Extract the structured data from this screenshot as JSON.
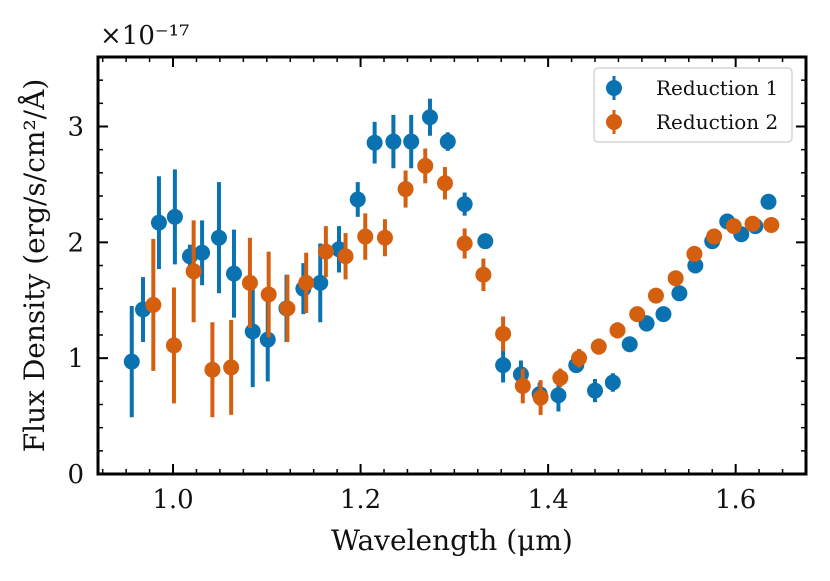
{
  "chart_data": {
    "type": "scatter",
    "xlabel": "Wavelength (μm)",
    "ylabel": "Flux Density (erg/s/cm²/Å)",
    "y_scale_label": "×10⁻¹⁷",
    "xlim": [
      0.92,
      1.675
    ],
    "ylim": [
      0,
      3.6
    ],
    "x_ticks": [
      1.0,
      1.2,
      1.4,
      1.6
    ],
    "x_tick_labels": [
      "1.0",
      "1.2",
      "1.4",
      "1.6"
    ],
    "y_ticks": [
      0,
      1,
      2,
      3
    ],
    "y_tick_labels": [
      "0",
      "1",
      "2",
      "3"
    ],
    "legend_position": "top-right",
    "series": [
      {
        "name": "Reduction 1",
        "color": "#0a72b0",
        "points": [
          {
            "x": 0.956,
            "y": 0.97,
            "err": 0.48
          },
          {
            "x": 0.968,
            "y": 1.42,
            "err": 0.28
          },
          {
            "x": 0.985,
            "y": 2.17,
            "err": 0.4
          },
          {
            "x": 1.002,
            "y": 2.22,
            "err": 0.41
          },
          {
            "x": 1.018,
            "y": 1.88,
            "err": 0.1
          },
          {
            "x": 1.031,
            "y": 1.91,
            "err": 0.28
          },
          {
            "x": 1.049,
            "y": 2.04,
            "err": 0.48
          },
          {
            "x": 1.065,
            "y": 1.73,
            "err": 0.38
          },
          {
            "x": 1.085,
            "y": 1.23,
            "err": 0.48
          },
          {
            "x": 1.101,
            "y": 1.16,
            "err": 0.36
          },
          {
            "x": 1.121,
            "y": 1.43,
            "err": 0.29
          },
          {
            "x": 1.139,
            "y": 1.6,
            "err": 0.22
          },
          {
            "x": 1.157,
            "y": 1.65,
            "err": 0.34
          },
          {
            "x": 1.177,
            "y": 1.94,
            "err": 0.2
          },
          {
            "x": 1.197,
            "y": 2.37,
            "err": 0.15
          },
          {
            "x": 1.215,
            "y": 2.86,
            "err": 0.18
          },
          {
            "x": 1.235,
            "y": 2.87,
            "err": 0.23
          },
          {
            "x": 1.254,
            "y": 2.87,
            "err": 0.23
          },
          {
            "x": 1.274,
            "y": 3.08,
            "err": 0.16
          },
          {
            "x": 1.293,
            "y": 2.87,
            "err": 0.08
          },
          {
            "x": 1.311,
            "y": 2.33,
            "err": 0.1
          },
          {
            "x": 1.333,
            "y": 2.01,
            "err": 0.04
          },
          {
            "x": 1.352,
            "y": 0.94,
            "err": 0.15
          },
          {
            "x": 1.371,
            "y": 0.86,
            "err": 0.12
          },
          {
            "x": 1.391,
            "y": 0.69,
            "err": 0.1
          },
          {
            "x": 1.411,
            "y": 0.68,
            "err": 0.14
          },
          {
            "x": 1.43,
            "y": 0.94,
            "err": 0.05
          },
          {
            "x": 1.45,
            "y": 0.72,
            "err": 0.1
          },
          {
            "x": 1.469,
            "y": 0.79,
            "err": 0.08
          },
          {
            "x": 1.487,
            "y": 1.12,
            "err": 0.04
          },
          {
            "x": 1.505,
            "y": 1.3,
            "err": 0.07
          },
          {
            "x": 1.523,
            "y": 1.38,
            "err": 0.04
          },
          {
            "x": 1.54,
            "y": 1.56,
            "err": 0.04
          },
          {
            "x": 1.557,
            "y": 1.8,
            "err": 0.05
          },
          {
            "x": 1.575,
            "y": 2.01,
            "err": 0.04
          },
          {
            "x": 1.591,
            "y": 2.18,
            "err": 0.05
          },
          {
            "x": 1.606,
            "y": 2.07,
            "err": 0.05
          },
          {
            "x": 1.621,
            "y": 2.14,
            "err": 0.05
          },
          {
            "x": 1.635,
            "y": 2.35,
            "err": 0.04
          }
        ]
      },
      {
        "name": "Reduction 2",
        "color": "#d35f0f",
        "points": [
          {
            "x": 0.979,
            "y": 1.46,
            "err": 0.57
          },
          {
            "x": 1.001,
            "y": 1.11,
            "err": 0.5
          },
          {
            "x": 1.022,
            "y": 1.75,
            "err": 0.44
          },
          {
            "x": 1.042,
            "y": 0.9,
            "err": 0.41
          },
          {
            "x": 1.062,
            "y": 0.92,
            "err": 0.41
          },
          {
            "x": 1.082,
            "y": 1.65,
            "err": 0.39
          },
          {
            "x": 1.102,
            "y": 1.55,
            "err": 0.37
          },
          {
            "x": 1.122,
            "y": 1.43,
            "err": 0.29
          },
          {
            "x": 1.142,
            "y": 1.65,
            "err": 0.26
          },
          {
            "x": 1.163,
            "y": 1.92,
            "err": 0.22
          },
          {
            "x": 1.184,
            "y": 1.88,
            "err": 0.2
          },
          {
            "x": 1.205,
            "y": 2.05,
            "err": 0.2
          },
          {
            "x": 1.226,
            "y": 2.04,
            "err": 0.16
          },
          {
            "x": 1.248,
            "y": 2.46,
            "err": 0.16
          },
          {
            "x": 1.269,
            "y": 2.66,
            "err": 0.15
          },
          {
            "x": 1.29,
            "y": 2.51,
            "err": 0.14
          },
          {
            "x": 1.311,
            "y": 1.99,
            "err": 0.13
          },
          {
            "x": 1.331,
            "y": 1.72,
            "err": 0.14
          },
          {
            "x": 1.352,
            "y": 1.21,
            "err": 0.15
          },
          {
            "x": 1.373,
            "y": 0.76,
            "err": 0.15
          },
          {
            "x": 1.392,
            "y": 0.66,
            "err": 0.15
          },
          {
            "x": 1.413,
            "y": 0.83,
            "err": 0.08
          },
          {
            "x": 1.433,
            "y": 1.0,
            "err": 0.08
          },
          {
            "x": 1.454,
            "y": 1.1,
            "err": 0.07
          },
          {
            "x": 1.474,
            "y": 1.24,
            "err": 0.07
          },
          {
            "x": 1.495,
            "y": 1.38,
            "err": 0.05
          },
          {
            "x": 1.515,
            "y": 1.54,
            "err": 0.04
          },
          {
            "x": 1.536,
            "y": 1.69,
            "err": 0.04
          },
          {
            "x": 1.556,
            "y": 1.9,
            "err": 0.04
          },
          {
            "x": 1.577,
            "y": 2.05,
            "err": 0.03
          },
          {
            "x": 1.598,
            "y": 2.14,
            "err": 0.03
          },
          {
            "x": 1.618,
            "y": 2.16,
            "err": 0.03
          },
          {
            "x": 1.638,
            "y": 2.15,
            "err": 0.03
          }
        ]
      }
    ]
  }
}
